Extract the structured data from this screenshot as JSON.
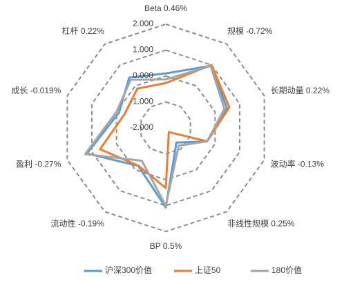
{
  "chart_data": {
    "type": "radar",
    "categories": [
      "Beta 0.46%",
      "规模 -0.72%",
      "长期动量 0.22%",
      "波动率 -0.13%",
      "非线性规模 0.25%",
      "BP 0.5%",
      "流动性 -0.19%",
      "盈利 -0.27%",
      "成长 -0.019%",
      "杠杆 0.22%"
    ],
    "series": [
      {
        "name": "沪深300价值",
        "color": "#5b9bd5",
        "values": [
          0.1,
          0.96,
          0.48,
          -0.32,
          -1.3,
          1.07,
          -0.19,
          1.2,
          -0.1,
          0.4
        ]
      },
      {
        "name": "上证50",
        "color": "#ed7d31",
        "values": [
          -0.27,
          1.0,
          0.58,
          -0.32,
          -1.8,
          0.32,
          -0.2,
          0.67,
          -0.32,
          -0.13
        ]
      },
      {
        "name": "180价值",
        "color": "#a5a5a5",
        "values": [
          -0.13,
          0.95,
          0.38,
          -0.32,
          -1.15,
          1.0,
          -0.43,
          1.27,
          0.0,
          0.3
        ]
      }
    ],
    "ylim": [
      -2,
      2
    ],
    "yticks": [
      {
        "value": 2,
        "label": "2.000"
      },
      {
        "value": 1,
        "label": "1.000"
      },
      {
        "value": 0,
        "label": "0.000"
      },
      {
        "value": -1,
        "label": "-1.000"
      },
      {
        "value": -2,
        "label": "-2.000"
      }
    ],
    "grid": true
  }
}
